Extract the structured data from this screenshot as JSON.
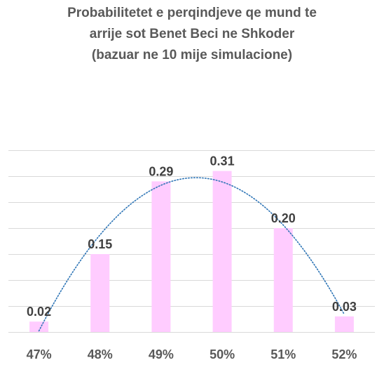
{
  "chart_data": {
    "type": "bar",
    "title_lines": [
      "Probabilitetet e perqindjeve qe mund te",
      "arrije sot Benet Beci ne Shkoder",
      "(bazuar ne 10 mije simulacione)"
    ],
    "categories": [
      "47%",
      "48%",
      "49%",
      "50%",
      "51%",
      "52%"
    ],
    "values": [
      0.02,
      0.15,
      0.29,
      0.31,
      0.2,
      0.03
    ],
    "data_labels": [
      "0.02",
      "0.15",
      "0.29",
      "0.31",
      "0.20",
      "0.03"
    ],
    "ylim": [
      0,
      0.35
    ],
    "grid": true,
    "trendline": {
      "type": "polynomial-2",
      "style": "dotted"
    },
    "colors": {
      "bar": "#FFCCFF",
      "trendline": "#2E75B6",
      "grid": "#D9D9D9",
      "text": "#595959"
    }
  }
}
